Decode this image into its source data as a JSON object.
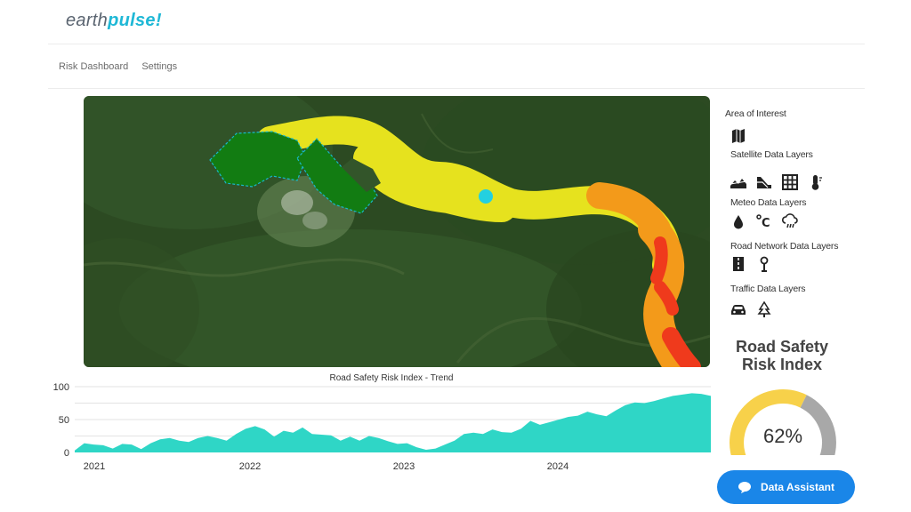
{
  "brand": {
    "part1": "earth",
    "part2": "pulse!",
    "accent": "#1fb8d6"
  },
  "nav": {
    "items": [
      "Risk Dashboard",
      "Settings"
    ]
  },
  "panel": {
    "area_of_interest": "Area of Interest",
    "satellite_layers": "Satellite Data Layers",
    "meteo_layers": "Meteo  Data Layers",
    "road_layers": "Road Network  Data Layers",
    "traffic_layers": "Traffic Data Layers",
    "icons": {
      "area": [
        "map-icon"
      ],
      "satellite": [
        "terrain-icon",
        "slope-icon",
        "grid-icon",
        "thermometer-icon"
      ],
      "meteo": [
        "raindrop-icon",
        "celsius-icon",
        "cloud-rain-icon"
      ],
      "road": [
        "road-icon",
        "street-light-icon"
      ],
      "traffic": [
        "car-icon",
        "tree-icon"
      ]
    }
  },
  "risk": {
    "title": "Road Safety Risk Index",
    "value": "62%",
    "fraction": 0.62,
    "colors": {
      "filled": "#f7d14a",
      "empty": "#a8a8a8"
    }
  },
  "assistant": {
    "label": "Data Assistant"
  },
  "chart_data": {
    "type": "area",
    "title": "Road Safety Risk Index - Trend",
    "x_ticks": [
      "2021",
      "2022",
      "2023",
      "2024"
    ],
    "y_ticks": [
      "100",
      "50",
      "0"
    ],
    "ylim": [
      0,
      100
    ],
    "grid": true,
    "series": [
      {
        "color": "#2fd6c6",
        "values": [
          3,
          14,
          12,
          11,
          6,
          13,
          12,
          5,
          14,
          20,
          22,
          18,
          16,
          22,
          25,
          22,
          18,
          28,
          36,
          40,
          35,
          24,
          33,
          30,
          38,
          28,
          27,
          26,
          18,
          24,
          18,
          25,
          22,
          17,
          13,
          14,
          8,
          4,
          6,
          12,
          18,
          28,
          30,
          28,
          35,
          31,
          30,
          36,
          48,
          42,
          46,
          50,
          54,
          56,
          62,
          58,
          55,
          64,
          72,
          76,
          75,
          78,
          82,
          86,
          88,
          90,
          89,
          86
        ]
      }
    ]
  },
  "map": {
    "marker_color": "#23d0e0",
    "route_colors": {
      "low": "#127c12",
      "medium": "#e6e21e",
      "high": "#f39a1a",
      "severe": "#ef3a1c"
    }
  }
}
